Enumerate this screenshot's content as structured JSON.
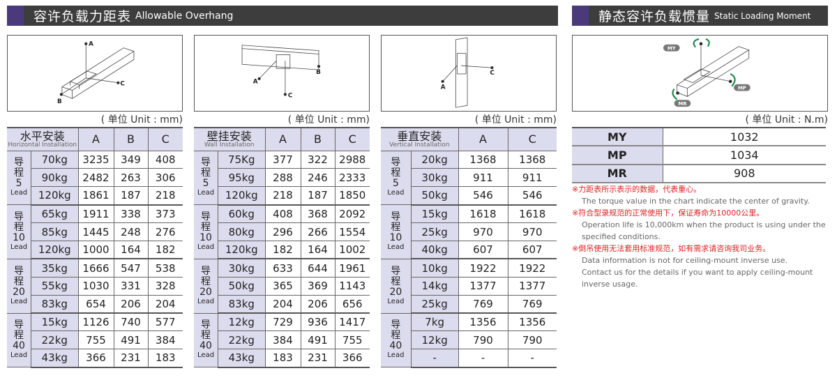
{
  "overhang": {
    "title_zh": "容许负载力距表",
    "title_en": "Allowable Overhang",
    "unit": "( 单位 Unit : mm)"
  },
  "moment_section": {
    "title_zh": "静态容许负载惯量",
    "title_en": "Static Loading Moment",
    "unit": "( 单位 Unit : N.m)"
  },
  "diagram_labels": {
    "a": "A",
    "b": "B",
    "c": "C",
    "my": "MY",
    "mp": "MP",
    "mr": "MR"
  },
  "colors": {
    "header_bar": "#3d3d3d",
    "accent": "#4a3a7c",
    "cell_fill": "#dcdcef",
    "note_red": "#e02020",
    "arrow_green": "#1e8a4a"
  },
  "tables": [
    {
      "title_zh": "水平安装",
      "title_en": "Horizontal Installation",
      "columns": [
        "A",
        "B",
        "C"
      ],
      "groups": [
        {
          "lead_zh": "导程",
          "lead": "5",
          "lead_en": "Lead",
          "rows": [
            [
              "70kg",
              "3235",
              "349",
              "408"
            ],
            [
              "90kg",
              "2482",
              "263",
              "306"
            ],
            [
              "120kg",
              "1861",
              "187",
              "218"
            ]
          ]
        },
        {
          "lead_zh": "导程",
          "lead": "10",
          "lead_en": "Lead",
          "rows": [
            [
              "65kg",
              "1911",
              "338",
              "373"
            ],
            [
              "85kg",
              "1445",
              "248",
              "276"
            ],
            [
              "120kg",
              "1000",
              "164",
              "182"
            ]
          ]
        },
        {
          "lead_zh": "导程",
          "lead": "20",
          "lead_en": "Lead",
          "rows": [
            [
              "35kg",
              "1666",
              "547",
              "538"
            ],
            [
              "55kg",
              "1030",
              "331",
              "328"
            ],
            [
              "83kg",
              "654",
              "206",
              "204"
            ]
          ]
        },
        {
          "lead_zh": "导程",
          "lead": "40",
          "lead_en": "Lead",
          "rows": [
            [
              "15kg",
              "1126",
              "740",
              "577"
            ],
            [
              "22kg",
              "755",
              "491",
              "384"
            ],
            [
              "43kg",
              "366",
              "231",
              "183"
            ]
          ]
        }
      ]
    },
    {
      "title_zh": "壁挂安装",
      "title_en": "Wall Installation",
      "columns": [
        "A",
        "B",
        "C"
      ],
      "groups": [
        {
          "lead_zh": "导程",
          "lead": "5",
          "lead_en": "Lead",
          "rows": [
            [
              "75Kg",
              "377",
              "322",
              "2988"
            ],
            [
              "95kg",
              "288",
              "246",
              "2333"
            ],
            [
              "120kg",
              "218",
              "187",
              "1850"
            ]
          ]
        },
        {
          "lead_zh": "导程",
          "lead": "10",
          "lead_en": "Lead",
          "rows": [
            [
              "60kg",
              "408",
              "368",
              "2092"
            ],
            [
              "80kg",
              "296",
              "266",
              "1554"
            ],
            [
              "120kg",
              "182",
              "164",
              "1002"
            ]
          ]
        },
        {
          "lead_zh": "导程",
          "lead": "20",
          "lead_en": "Lead",
          "rows": [
            [
              "30kg",
              "633",
              "644",
              "1961"
            ],
            [
              "50kg",
              "365",
              "369",
              "1143"
            ],
            [
              "83kg",
              "204",
              "206",
              "656"
            ]
          ]
        },
        {
          "lead_zh": "导程",
          "lead": "40",
          "lead_en": "Lead",
          "rows": [
            [
              "12kg",
              "729",
              "936",
              "1417"
            ],
            [
              "22kg",
              "384",
              "491",
              "755"
            ],
            [
              "43kg",
              "183",
              "231",
              "366"
            ]
          ]
        }
      ]
    },
    {
      "title_zh": "垂直安装",
      "title_en": "Vertical Installation",
      "columns": [
        "A",
        "C"
      ],
      "groups": [
        {
          "lead_zh": "导程",
          "lead": "5",
          "lead_en": "Lead",
          "rows": [
            [
              "20kg",
              "1368",
              "1368"
            ],
            [
              "30kg",
              "911",
              "911"
            ],
            [
              "50kg",
              "546",
              "546"
            ]
          ]
        },
        {
          "lead_zh": "导程",
          "lead": "10",
          "lead_en": "Lead",
          "rows": [
            [
              "15kg",
              "1618",
              "1618"
            ],
            [
              "25kg",
              "970",
              "970"
            ],
            [
              "40kg",
              "607",
              "607"
            ]
          ]
        },
        {
          "lead_zh": "导程",
          "lead": "20",
          "lead_en": "Lead",
          "rows": [
            [
              "10kg",
              "1922",
              "1922"
            ],
            [
              "14kg",
              "1377",
              "1377"
            ],
            [
              "25kg",
              "769",
              "769"
            ]
          ]
        },
        {
          "lead_zh": "导程",
          "lead": "40",
          "lead_en": "Lead",
          "rows": [
            [
              "7kg",
              "1356",
              "1356"
            ],
            [
              "12kg",
              "790",
              "790"
            ],
            [
              "-",
              "-",
              "-"
            ]
          ]
        }
      ]
    }
  ],
  "moments": [
    {
      "key": "MY",
      "value": "1032"
    },
    {
      "key": "MP",
      "value": "1034"
    },
    {
      "key": "MR",
      "value": "908"
    }
  ],
  "notes": [
    {
      "type": "red",
      "text": "※力距表所示表示的数据，代表重心。"
    },
    {
      "type": "grey",
      "text": "The torque value in the chart indicate the center of gravity."
    },
    {
      "type": "red",
      "text": "※符合型录规范的正常使用下，保证寿命为10000公里。"
    },
    {
      "type": "grey",
      "text": "Operation life is 10,000km when the product is using under the"
    },
    {
      "type": "grey",
      "text": "specified conditions."
    },
    {
      "type": "red",
      "text": "※倒吊使用无法套用标准规范，如有需求请咨询我司业务。"
    },
    {
      "type": "grey",
      "text": "Data information is not for ceiling-mount inverse use."
    },
    {
      "type": "grey",
      "text": "Contact us for the details if you want to apply ceiling-mount"
    },
    {
      "type": "grey",
      "text": "inverse usage."
    }
  ]
}
